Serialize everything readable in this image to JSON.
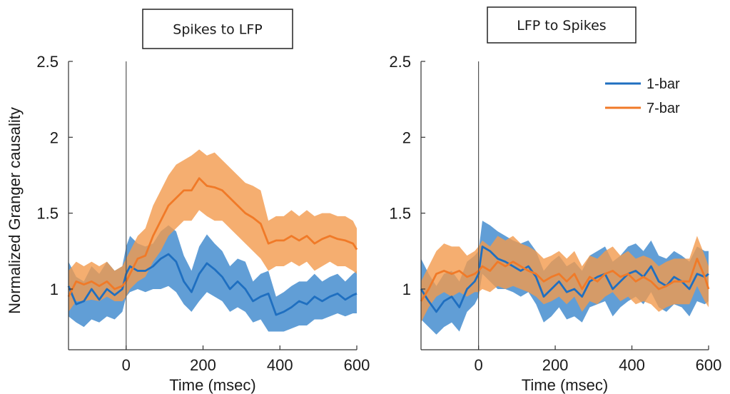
{
  "colors": {
    "series_1bar": "#1f6fc0",
    "band_1bar": "#3a86cc",
    "series_7bar": "#f07a28",
    "band_7bar": "#f39a4c",
    "axis": "#333333"
  },
  "ylabel": "Normalized Granger causality",
  "chart_data": [
    {
      "type": "line",
      "title": "Spikes to LFP",
      "xlabel": "Time (msec)",
      "ylabel": "Normalized Granger causality",
      "xlim": [
        -150,
        600
      ],
      "ylim": [
        0.6,
        2.5
      ],
      "xticks": [
        0,
        200,
        400,
        600
      ],
      "yticks": [
        1,
        1.5,
        2,
        2.5
      ],
      "ytick_labels": [
        "1",
        "1.5",
        "2",
        "2.5"
      ],
      "event_line_x": 0,
      "legend": null,
      "series": [
        {
          "name": "1-bar",
          "color": "#1f6fc0",
          "x": [
            -150,
            -130,
            -110,
            -90,
            -70,
            -50,
            -30,
            -10,
            0,
            10,
            30,
            50,
            70,
            90,
            110,
            130,
            150,
            170,
            190,
            210,
            230,
            250,
            270,
            290,
            310,
            330,
            350,
            370,
            390,
            410,
            430,
            450,
            470,
            490,
            510,
            530,
            550,
            570,
            590,
            600
          ],
          "y": [
            1.02,
            0.9,
            0.92,
            1.0,
            0.93,
            1.0,
            0.96,
            1.0,
            1.1,
            1.15,
            1.12,
            1.12,
            1.15,
            1.2,
            1.23,
            1.18,
            1.05,
            0.98,
            1.1,
            1.17,
            1.13,
            1.08,
            1.0,
            1.05,
            1.0,
            0.92,
            0.95,
            0.97,
            0.83,
            0.85,
            0.88,
            0.92,
            0.9,
            0.95,
            0.92,
            0.95,
            0.97,
            0.93,
            0.96,
            0.97
          ],
          "lower": [
            0.82,
            0.78,
            0.75,
            0.8,
            0.78,
            0.82,
            0.8,
            0.85,
            0.95,
            0.98,
            1.0,
            0.98,
            1.0,
            1.0,
            1.02,
            0.98,
            0.9,
            0.85,
            0.92,
            0.98,
            0.95,
            0.92,
            0.85,
            0.88,
            0.85,
            0.78,
            0.8,
            0.72,
            0.72,
            0.72,
            0.74,
            0.76,
            0.76,
            0.8,
            0.8,
            0.82,
            0.84,
            0.82,
            0.84,
            0.84
          ],
          "upper": [
            1.18,
            1.08,
            1.05,
            1.15,
            1.1,
            1.18,
            1.12,
            1.15,
            1.28,
            1.35,
            1.3,
            1.28,
            1.3,
            1.38,
            1.42,
            1.38,
            1.22,
            1.12,
            1.28,
            1.36,
            1.3,
            1.25,
            1.15,
            1.2,
            1.18,
            1.05,
            1.1,
            1.12,
            0.95,
            0.98,
            1.02,
            1.05,
            1.05,
            1.1,
            1.05,
            1.08,
            1.1,
            1.05,
            1.1,
            1.12
          ]
        },
        {
          "name": "7-bar",
          "color": "#f07a28",
          "x": [
            -150,
            -130,
            -110,
            -90,
            -70,
            -50,
            -30,
            -10,
            0,
            10,
            30,
            50,
            70,
            90,
            110,
            130,
            150,
            170,
            190,
            210,
            230,
            250,
            270,
            290,
            310,
            330,
            350,
            370,
            390,
            410,
            430,
            450,
            470,
            490,
            510,
            530,
            550,
            570,
            590,
            600
          ],
          "y": [
            0.95,
            1.05,
            1.03,
            1.05,
            1.02,
            1.05,
            1.0,
            1.02,
            1.05,
            1.1,
            1.2,
            1.22,
            1.35,
            1.45,
            1.55,
            1.6,
            1.65,
            1.65,
            1.73,
            1.68,
            1.67,
            1.65,
            1.6,
            1.55,
            1.5,
            1.47,
            1.43,
            1.3,
            1.32,
            1.32,
            1.35,
            1.32,
            1.35,
            1.3,
            1.33,
            1.35,
            1.33,
            1.32,
            1.3,
            1.26
          ],
          "lower": [
            0.85,
            0.92,
            0.92,
            0.93,
            0.92,
            0.95,
            0.92,
            0.92,
            0.95,
            1.0,
            1.05,
            1.08,
            1.18,
            1.25,
            1.35,
            1.4,
            1.45,
            1.45,
            1.52,
            1.48,
            1.45,
            1.45,
            1.4,
            1.35,
            1.3,
            1.25,
            1.2,
            1.12,
            1.15,
            1.15,
            1.18,
            1.15,
            1.18,
            1.12,
            1.15,
            1.18,
            1.15,
            1.15,
            1.12,
            1.1
          ],
          "upper": [
            1.12,
            1.18,
            1.15,
            1.18,
            1.15,
            1.18,
            1.12,
            1.15,
            1.2,
            1.25,
            1.35,
            1.4,
            1.55,
            1.65,
            1.75,
            1.82,
            1.85,
            1.88,
            1.92,
            1.88,
            1.9,
            1.85,
            1.8,
            1.75,
            1.7,
            1.68,
            1.65,
            1.45,
            1.48,
            1.48,
            1.52,
            1.48,
            1.52,
            1.48,
            1.5,
            1.5,
            1.48,
            1.48,
            1.45,
            1.4
          ]
        }
      ]
    },
    {
      "type": "line",
      "title": "LFP to Spikes",
      "xlabel": "Time (msec)",
      "ylabel": "",
      "xlim": [
        -150,
        600
      ],
      "ylim": [
        0.6,
        2.5
      ],
      "xticks": [
        0,
        200,
        400,
        600
      ],
      "yticks": [
        1,
        1.5,
        2,
        2.5
      ],
      "ytick_labels": [
        "1",
        "1.5",
        "2",
        "2.5"
      ],
      "event_line_x": 0,
      "legend": "top-right",
      "series": [
        {
          "name": "1-bar",
          "color": "#1f6fc0",
          "x": [
            -150,
            -130,
            -110,
            -90,
            -70,
            -50,
            -30,
            -10,
            0,
            10,
            30,
            50,
            70,
            90,
            110,
            130,
            150,
            170,
            190,
            210,
            230,
            250,
            270,
            290,
            310,
            330,
            350,
            370,
            390,
            410,
            430,
            450,
            470,
            490,
            510,
            530,
            550,
            570,
            590,
            600
          ],
          "y": [
            1.0,
            0.92,
            0.85,
            0.92,
            0.95,
            0.88,
            1.0,
            1.05,
            1.1,
            1.28,
            1.25,
            1.2,
            1.18,
            1.15,
            1.12,
            1.15,
            1.08,
            0.95,
            1.0,
            1.05,
            0.98,
            1.0,
            0.95,
            1.05,
            1.08,
            1.1,
            1.0,
            1.05,
            1.1,
            1.12,
            1.08,
            1.15,
            1.05,
            1.02,
            1.08,
            1.05,
            1.0,
            1.1,
            1.08,
            1.1
          ],
          "lower": [
            0.8,
            0.75,
            0.7,
            0.75,
            0.78,
            0.72,
            0.85,
            0.9,
            0.95,
            1.1,
            1.05,
            1.0,
            1.0,
            0.98,
            0.95,
            0.98,
            0.9,
            0.78,
            0.82,
            0.88,
            0.8,
            0.82,
            0.78,
            0.88,
            0.9,
            0.92,
            0.82,
            0.88,
            0.92,
            0.95,
            0.9,
            0.98,
            0.88,
            0.85,
            0.9,
            0.88,
            0.82,
            0.92,
            0.9,
            0.92
          ],
          "upper": [
            1.2,
            1.1,
            1.02,
            1.1,
            1.12,
            1.05,
            1.18,
            1.22,
            1.25,
            1.45,
            1.42,
            1.38,
            1.35,
            1.32,
            1.3,
            1.32,
            1.25,
            1.12,
            1.18,
            1.22,
            1.15,
            1.18,
            1.12,
            1.22,
            1.25,
            1.28,
            1.18,
            1.22,
            1.28,
            1.3,
            1.25,
            1.32,
            1.22,
            1.2,
            1.25,
            1.22,
            1.18,
            1.28,
            1.25,
            1.25
          ]
        },
        {
          "name": "7-bar",
          "color": "#f07a28",
          "x": [
            -150,
            -130,
            -110,
            -90,
            -70,
            -50,
            -30,
            -10,
            0,
            10,
            30,
            50,
            70,
            90,
            110,
            130,
            150,
            170,
            190,
            210,
            230,
            250,
            270,
            290,
            310,
            330,
            350,
            370,
            390,
            410,
            430,
            450,
            470,
            490,
            510,
            530,
            550,
            570,
            590,
            600
          ],
          "y": [
            0.92,
            1.0,
            1.1,
            1.12,
            1.1,
            1.12,
            1.08,
            1.1,
            1.12,
            1.15,
            1.12,
            1.18,
            1.15,
            1.18,
            1.15,
            1.12,
            1.1,
            1.05,
            1.08,
            1.1,
            1.05,
            1.1,
            1.0,
            1.08,
            1.05,
            1.1,
            1.12,
            1.08,
            1.1,
            1.05,
            1.08,
            1.05,
            1.0,
            1.02,
            1.05,
            1.05,
            1.05,
            1.2,
            1.08,
            1.0
          ],
          "lower": [
            0.78,
            0.88,
            0.95,
            0.98,
            0.95,
            0.98,
            0.95,
            0.98,
            0.98,
            1.0,
            0.98,
            1.02,
            1.0,
            1.02,
            1.0,
            0.98,
            0.95,
            0.9,
            0.92,
            0.95,
            0.9,
            0.95,
            0.85,
            0.92,
            0.9,
            0.95,
            0.98,
            0.92,
            0.95,
            0.9,
            0.92,
            0.9,
            0.85,
            0.88,
            0.9,
            0.9,
            0.9,
            1.02,
            0.92,
            0.88
          ],
          "upper": [
            1.05,
            1.15,
            1.25,
            1.3,
            1.28,
            1.28,
            1.22,
            1.25,
            1.28,
            1.32,
            1.28,
            1.35,
            1.32,
            1.35,
            1.3,
            1.28,
            1.25,
            1.2,
            1.22,
            1.25,
            1.2,
            1.25,
            1.15,
            1.22,
            1.2,
            1.25,
            1.28,
            1.22,
            1.25,
            1.2,
            1.22,
            1.2,
            1.15,
            1.18,
            1.2,
            1.2,
            1.2,
            1.35,
            1.22,
            1.15
          ]
        }
      ]
    }
  ]
}
